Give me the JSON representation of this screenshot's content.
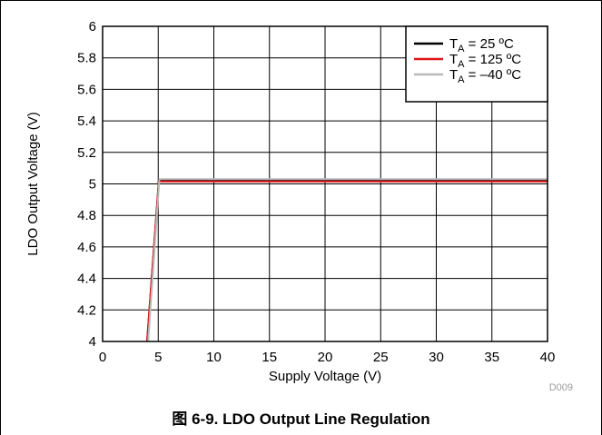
{
  "caption": "图 6-9. LDO Output Line Regulation",
  "figure_code": "D009",
  "legend": [
    {
      "label_main": "T",
      "label_sub": "A",
      "label_rest": " = 25 ºC",
      "color": "#000000"
    },
    {
      "label_main": "T",
      "label_sub": "A",
      "label_rest": " = 125 ºC",
      "color": "#e0161b"
    },
    {
      "label_main": "T",
      "label_sub": "A",
      "label_rest": " = –40 ºC",
      "color": "#b9b9b9"
    }
  ],
  "chart_data": {
    "type": "line",
    "title": "",
    "xlabel": "Supply Voltage (V)",
    "ylabel": "LDO Output Voltage (V)",
    "xlim": [
      0,
      40
    ],
    "ylim": [
      4,
      6
    ],
    "xticks": [
      0,
      5,
      10,
      15,
      20,
      25,
      30,
      35,
      40
    ],
    "yticks": [
      4,
      4.2,
      4.4,
      4.6,
      4.8,
      5,
      5.2,
      5.4,
      5.6,
      5.8,
      6
    ],
    "xtick_labels": [
      "0",
      "5",
      "10",
      "15",
      "20",
      "25",
      "30",
      "35",
      "40"
    ],
    "ytick_labels": [
      "4",
      "4.2",
      "4.4",
      "4.6",
      "4.8",
      "5",
      "5.2",
      "5.4",
      "5.6",
      "5.8",
      "6"
    ],
    "grid": true,
    "legend_position": "top-right",
    "series": [
      {
        "name": "TA = 25 ºC",
        "color": "#000000",
        "x": [
          4.0,
          5.05,
          40
        ],
        "y": [
          4.0,
          5.02,
          5.02
        ]
      },
      {
        "name": "TA = 125 ºC",
        "color": "#e0161b",
        "x": [
          4.0,
          5.05,
          40
        ],
        "y": [
          4.0,
          5.015,
          5.015
        ]
      },
      {
        "name": "TA = –40 ºC",
        "color": "#b9b9b9",
        "x": [
          4.1,
          5.1,
          40
        ],
        "y": [
          4.0,
          5.03,
          5.03
        ]
      }
    ]
  }
}
